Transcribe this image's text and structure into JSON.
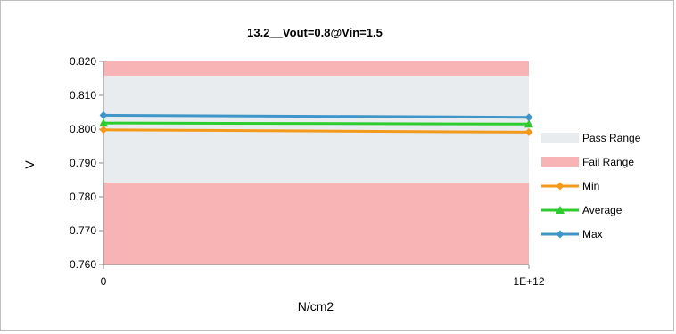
{
  "chart_data": {
    "type": "line",
    "title": "13.2__Vout=0.8@Vin=1.5",
    "xlabel": "N/cm2",
    "ylabel": "V",
    "categories": [
      "0",
      "1E+12"
    ],
    "ylim": [
      0.76,
      0.82
    ],
    "yticks": [
      "0.760",
      "0.770",
      "0.780",
      "0.790",
      "0.800",
      "0.810",
      "0.820"
    ],
    "bands": [
      {
        "name": "Pass Range",
        "from": 0.7842,
        "to": 0.8158,
        "color": "#e8ecee"
      },
      {
        "name": "Fail Range",
        "ranges": [
          [
            0.76,
            0.7842
          ],
          [
            0.8158,
            0.82
          ]
        ],
        "color": "#f8b4b4"
      }
    ],
    "series": [
      {
        "name": "Min",
        "values": [
          0.7998,
          0.7991
        ],
        "color": "#f39a1c",
        "marker": "diamond"
      },
      {
        "name": "Average",
        "values": [
          0.8018,
          0.8015
        ],
        "color": "#2ecc2e",
        "marker": "triangle"
      },
      {
        "name": "Max",
        "values": [
          0.8041,
          0.8035
        ],
        "color": "#3f96c8",
        "marker": "diamond"
      }
    ],
    "legend_position": "right",
    "grid": false
  }
}
